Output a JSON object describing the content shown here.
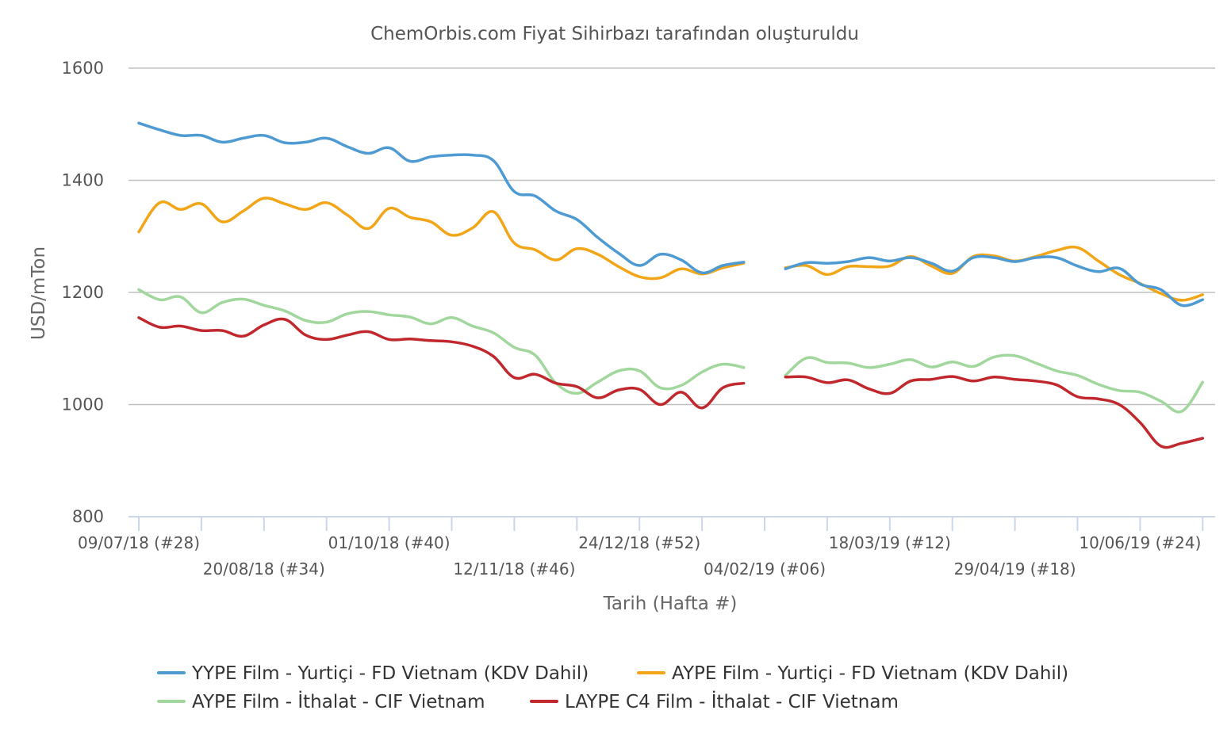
{
  "chart_data": {
    "type": "line",
    "credit": "ChemOrbis.com Fiyat Sihirbazı tarafından oluşturuldu",
    "ylabel": "USD/mTon",
    "xlabel": "Tarih (Hafta #)",
    "ylim": [
      800,
      1600
    ],
    "yticks": [
      800,
      1000,
      1200,
      1400,
      1600
    ],
    "grid": true,
    "legend_position": "bottom",
    "week_numbers": [
      28,
      29,
      30,
      31,
      32,
      33,
      34,
      35,
      36,
      37,
      38,
      39,
      40,
      41,
      42,
      43,
      44,
      45,
      46,
      47,
      48,
      49,
      50,
      51,
      52,
      1,
      2,
      3,
      4,
      5,
      6,
      7,
      8,
      9,
      10,
      11,
      12,
      13,
      14,
      15,
      16,
      17,
      18,
      19,
      20,
      21,
      22,
      23,
      24,
      25,
      26,
      27
    ],
    "x_tick_labels": [
      {
        "week_index": 0,
        "label": "09/07/18 (#28)",
        "row": 1
      },
      {
        "week_index": 6,
        "label": "20/08/18 (#34)",
        "row": 2
      },
      {
        "week_index": 12,
        "label": "01/10/18 (#40)",
        "row": 1
      },
      {
        "week_index": 18,
        "label": "12/11/18 (#46)",
        "row": 2
      },
      {
        "week_index": 24,
        "label": "24/12/18 (#52)",
        "row": 1
      },
      {
        "week_index": 30,
        "label": "04/02/19 (#06)",
        "row": 2
      },
      {
        "week_index": 36,
        "label": "18/03/19 (#12)",
        "row": 1
      },
      {
        "week_index": 42,
        "label": "29/04/19 (#18)",
        "row": 2
      },
      {
        "week_index": 48,
        "label": "10/06/19 (#24)",
        "row": 1
      }
    ],
    "series": [
      {
        "name": "YYPE Film - Yurtiçi  - FD Vietnam (KDV Dahil)",
        "color": "#4e9ad2",
        "values": [
          1502,
          1490,
          1480,
          1480,
          1468,
          1475,
          1480,
          1467,
          1468,
          1475,
          1460,
          1448,
          1458,
          1434,
          1442,
          1445,
          1445,
          1435,
          1380,
          1372,
          1345,
          1330,
          1298,
          1270,
          1248,
          1268,
          1258,
          1235,
          1248,
          1254,
          null,
          1242,
          1253,
          1252,
          1255,
          1262,
          1256,
          1262,
          1252,
          1238,
          1262,
          1262,
          1255,
          1262,
          1262,
          1247,
          1237,
          1243,
          1215,
          1205,
          1177,
          1187
        ]
      },
      {
        "name": "AYPE Film - Yurtiçi  - FD Vietnam (KDV Dahil)",
        "color": "#f2a516",
        "values": [
          1308,
          1360,
          1348,
          1358,
          1326,
          1345,
          1368,
          1358,
          1348,
          1360,
          1338,
          1314,
          1350,
          1334,
          1326,
          1302,
          1315,
          1344,
          1288,
          1276,
          1258,
          1278,
          1268,
          1246,
          1228,
          1226,
          1242,
          1233,
          1244,
          1252,
          null,
          1244,
          1248,
          1232,
          1246,
          1246,
          1247,
          1264,
          1247,
          1234,
          1264,
          1265,
          1256,
          1264,
          1275,
          1280,
          1256,
          1232,
          1216,
          1198,
          1186,
          1196
        ]
      },
      {
        "name": "AYPE Film - İthalat  - CIF Vietnam",
        "color": "#a1d79d",
        "values": [
          1205,
          1187,
          1192,
          1164,
          1182,
          1188,
          1177,
          1167,
          1150,
          1147,
          1162,
          1166,
          1160,
          1156,
          1144,
          1155,
          1140,
          1128,
          1102,
          1088,
          1038,
          1020,
          1040,
          1060,
          1060,
          1030,
          1034,
          1058,
          1072,
          1066,
          null,
          1052,
          1083,
          1075,
          1074,
          1066,
          1072,
          1080,
          1067,
          1076,
          1068,
          1085,
          1087,
          1074,
          1060,
          1052,
          1036,
          1025,
          1022,
          1006,
          988,
          1040
        ]
      },
      {
        "name": "LAYPE C4 Film - İthalat  - CIF Vietnam",
        "color": "#c0282d",
        "values": [
          1155,
          1138,
          1140,
          1132,
          1132,
          1122,
          1142,
          1152,
          1124,
          1116,
          1124,
          1130,
          1116,
          1117,
          1114,
          1112,
          1104,
          1086,
          1048,
          1054,
          1038,
          1032,
          1012,
          1026,
          1027,
          1000,
          1022,
          994,
          1030,
          1038,
          null,
          1049,
          1049,
          1039,
          1044,
          1028,
          1020,
          1042,
          1045,
          1050,
          1042,
          1049,
          1045,
          1042,
          1035,
          1014,
          1010,
          1000,
          968,
          926,
          931,
          940
        ]
      }
    ]
  }
}
